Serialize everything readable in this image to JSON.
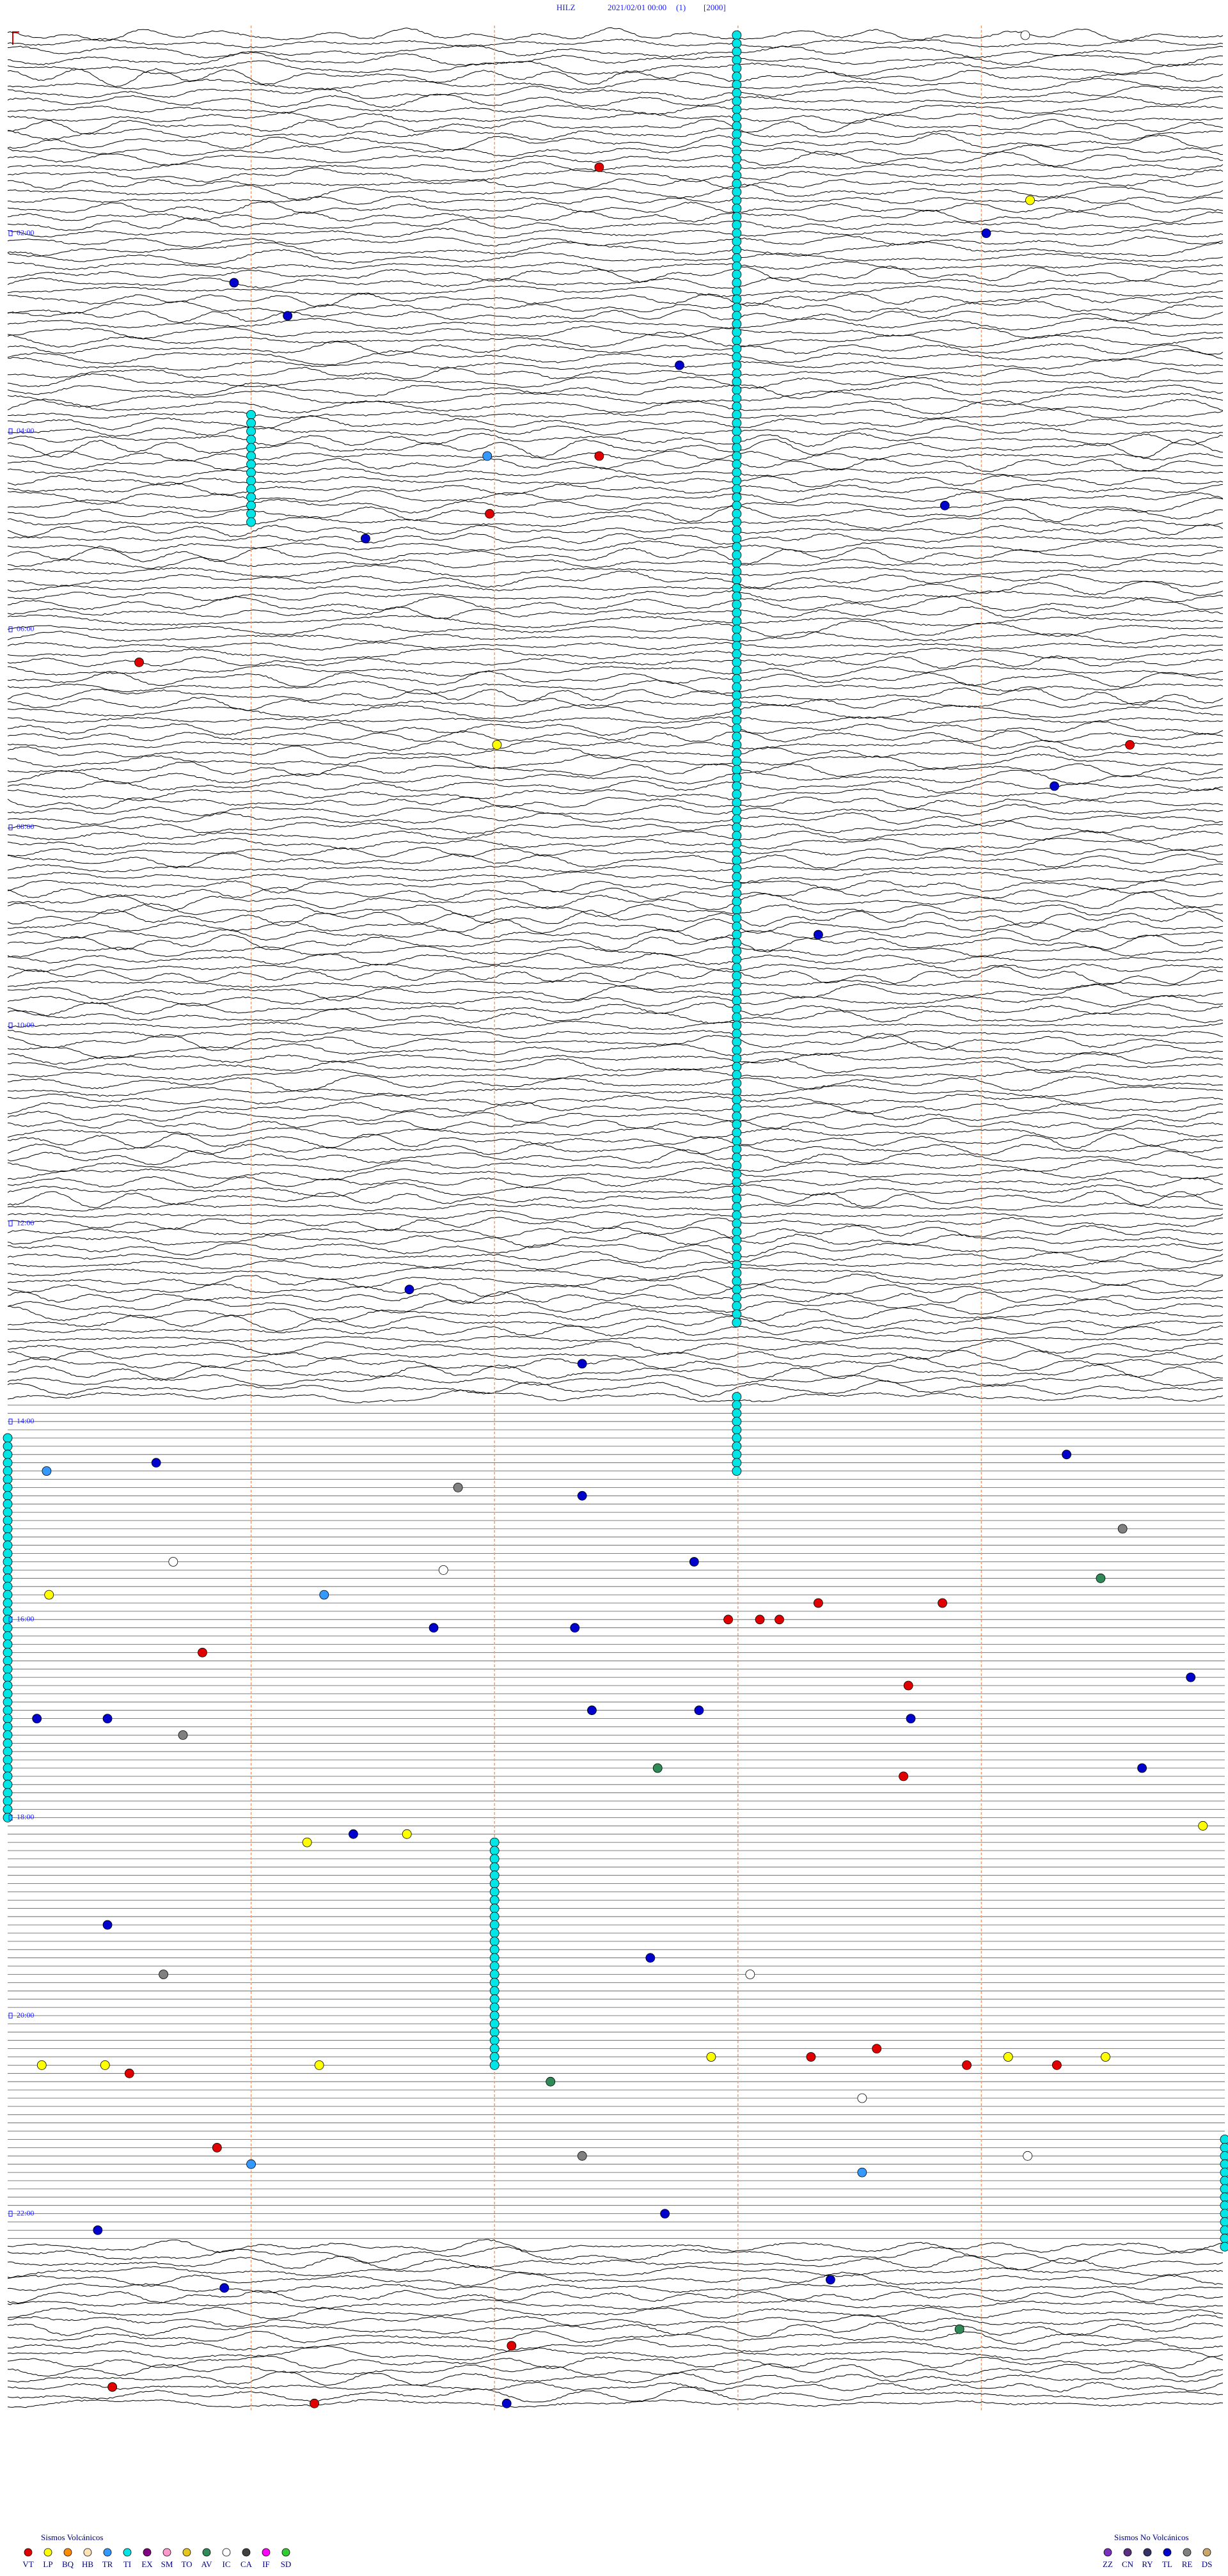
{
  "chart_data": {
    "type": "helicorder",
    "title_parts": [
      "HILZ",
      "2021/02/01 00:00",
      "(1)",
      "[2000]"
    ],
    "xlim": [
      0,
      5
    ],
    "ylim": [
      0,
      24
    ],
    "xticks": [
      1,
      2,
      3,
      4
    ],
    "yticks": [
      {
        "value": 2,
        "label": "02:00"
      },
      {
        "value": 4,
        "label": "04:00"
      },
      {
        "value": 6,
        "label": "06:00"
      },
      {
        "value": 8,
        "label": "08:00"
      },
      {
        "value": 10,
        "label": "10:00"
      },
      {
        "value": 12,
        "label": "12:00"
      },
      {
        "value": 14,
        "label": "14:00"
      },
      {
        "value": 16,
        "label": "16:00"
      },
      {
        "value": 18,
        "label": "18:00"
      },
      {
        "value": 20,
        "label": "20:00"
      },
      {
        "value": 22,
        "label": "22:00"
      }
    ],
    "gap_rows": [
      166,
      267
    ],
    "legends": [
      {
        "title": "Sismos Volcánicos",
        "items": [
          {
            "code": "VT",
            "color": "#e00000"
          },
          {
            "code": "LP",
            "color": "#ffff00"
          },
          {
            "code": "BQ",
            "color": "#ff8c00"
          },
          {
            "code": "HB",
            "color": "#ffe4b5"
          },
          {
            "code": "TR",
            "color": "#3399ff"
          },
          {
            "code": "TI",
            "color": "#00e5e5"
          },
          {
            "code": "EX",
            "color": "#800080"
          },
          {
            "code": "SM",
            "color": "#ff99cc"
          },
          {
            "code": "TO",
            "color": "#e6c619"
          },
          {
            "code": "AV",
            "color": "#2e8b57"
          },
          {
            "code": "IC",
            "color": "#ffffff"
          },
          {
            "code": "CA",
            "color": "#404040"
          },
          {
            "code": "IF",
            "color": "#ff00ff"
          },
          {
            "code": "SD",
            "color": "#33cc33"
          }
        ]
      },
      {
        "title": "Sismos No Volcánicos",
        "items": [
          {
            "code": "ZZ",
            "color": "#7b2fbe"
          },
          {
            "code": "CN",
            "color": "#5a2d82"
          },
          {
            "code": "RY",
            "color": "#333366"
          },
          {
            "code": "TL",
            "color": "#0000cc"
          },
          {
            "code": "RE",
            "color": "#808080"
          },
          {
            "code": "DS",
            "color": "#c9a66b"
          }
        ]
      }
    ],
    "runs": [
      {
        "code": "TI",
        "x": 2.995,
        "from": 0,
        "to": 156
      },
      {
        "code": "TI",
        "x": 1.0,
        "from": 46,
        "to": 59
      },
      {
        "code": "TI",
        "x": 2.995,
        "from": 165,
        "to": 174
      },
      {
        "code": "TI",
        "x": 2.0,
        "from": 219,
        "to": 246
      },
      {
        "code": "TI",
        "x": 0.0,
        "from": 170,
        "to": 216
      },
      {
        "code": "TI",
        "x": 5.0,
        "from": 255,
        "to": 268
      }
    ],
    "events": [
      {
        "code": "IC",
        "row": 0,
        "x": 4.18
      },
      {
        "code": "VT",
        "row": 16,
        "x": 2.43
      },
      {
        "code": "LP",
        "row": 20,
        "x": 4.2
      },
      {
        "code": "TL",
        "row": 24,
        "x": 4.02
      },
      {
        "code": "TL",
        "row": 30,
        "x": 0.93
      },
      {
        "code": "TL",
        "row": 34,
        "x": 1.15
      },
      {
        "code": "TL",
        "row": 40,
        "x": 2.76
      },
      {
        "code": "VT",
        "row": 51,
        "x": 2.43
      },
      {
        "code": "TR",
        "row": 51,
        "x": 1.97
      },
      {
        "code": "TL",
        "row": 57,
        "x": 3.85
      },
      {
        "code": "VT",
        "row": 58,
        "x": 1.98
      },
      {
        "code": "TL",
        "row": 61,
        "x": 1.47
      },
      {
        "code": "VT",
        "row": 76,
        "x": 0.54
      },
      {
        "code": "LP",
        "row": 86,
        "x": 2.01
      },
      {
        "code": "VT",
        "row": 86,
        "x": 4.61
      },
      {
        "code": "TL",
        "row": 91,
        "x": 4.3
      },
      {
        "code": "TL",
        "row": 109,
        "x": 3.33
      },
      {
        "code": "TL",
        "row": 152,
        "x": 1.65
      },
      {
        "code": "TL",
        "row": 161,
        "x": 2.36
      },
      {
        "code": "TL",
        "row": 172,
        "x": 4.35
      },
      {
        "code": "TL",
        "row": 173,
        "x": 0.61
      },
      {
        "code": "TR",
        "row": 174,
        "x": 0.16
      },
      {
        "code": "RE",
        "row": 176,
        "x": 1.85
      },
      {
        "code": "TL",
        "row": 177,
        "x": 2.36
      },
      {
        "code": "RE",
        "row": 181,
        "x": 4.58
      },
      {
        "code": "TL",
        "row": 185,
        "x": 2.82
      },
      {
        "code": "IC",
        "row": 185,
        "x": 0.68
      },
      {
        "code": "IC",
        "row": 186,
        "x": 1.79
      },
      {
        "code": "AV",
        "row": 187,
        "x": 4.49
      },
      {
        "code": "TR",
        "row": 189,
        "x": 1.3
      },
      {
        "code": "LP",
        "row": 189,
        "x": 0.17
      },
      {
        "code": "VT",
        "row": 190,
        "x": 3.33
      },
      {
        "code": "VT",
        "row": 190,
        "x": 3.84
      },
      {
        "code": "VT",
        "row": 192,
        "x": 2.96
      },
      {
        "code": "VT",
        "row": 192,
        "x": 3.09
      },
      {
        "code": "VT",
        "row": 192,
        "x": 3.17
      },
      {
        "code": "TL",
        "row": 193,
        "x": 1.75
      },
      {
        "code": "TL",
        "row": 193,
        "x": 2.33
      },
      {
        "code": "VT",
        "row": 196,
        "x": 0.8
      },
      {
        "code": "TL",
        "row": 199,
        "x": 4.86
      },
      {
        "code": "VT",
        "row": 200,
        "x": 3.7
      },
      {
        "code": "TL",
        "row": 203,
        "x": 2.4
      },
      {
        "code": "TL",
        "row": 203,
        "x": 2.84
      },
      {
        "code": "TL",
        "row": 204,
        "x": 0.12
      },
      {
        "code": "TL",
        "row": 204,
        "x": 0.41
      },
      {
        "code": "TL",
        "row": 204,
        "x": 3.71
      },
      {
        "code": "RE",
        "row": 206,
        "x": 0.72
      },
      {
        "code": "AV",
        "row": 210,
        "x": 2.67
      },
      {
        "code": "TL",
        "row": 210,
        "x": 4.66
      },
      {
        "code": "VT",
        "row": 211,
        "x": 3.68
      },
      {
        "code": "LP",
        "row": 217,
        "x": 4.91
      },
      {
        "code": "TL",
        "row": 218,
        "x": 1.42
      },
      {
        "code": "LP",
        "row": 218,
        "x": 1.64
      },
      {
        "code": "LP",
        "row": 219,
        "x": 1.23
      },
      {
        "code": "TL",
        "row": 229,
        "x": 0.41
      },
      {
        "code": "TL",
        "row": 233,
        "x": 2.64
      },
      {
        "code": "RE",
        "row": 235,
        "x": 0.64
      },
      {
        "code": "IC",
        "row": 235,
        "x": 3.05
      },
      {
        "code": "VT",
        "row": 244,
        "x": 3.57
      },
      {
        "code": "VT",
        "row": 245,
        "x": 3.3
      },
      {
        "code": "LP",
        "row": 245,
        "x": 2.89
      },
      {
        "code": "LP",
        "row": 245,
        "x": 4.11
      },
      {
        "code": "LP",
        "row": 245,
        "x": 4.51
      },
      {
        "code": "VT",
        "row": 246,
        "x": 3.94
      },
      {
        "code": "VT",
        "row": 246,
        "x": 4.31
      },
      {
        "code": "LP",
        "row": 246,
        "x": 0.14
      },
      {
        "code": "LP",
        "row": 246,
        "x": 0.4
      },
      {
        "code": "LP",
        "row": 246,
        "x": 1.28
      },
      {
        "code": "VT",
        "row": 247,
        "x": 0.5
      },
      {
        "code": "AV",
        "row": 248,
        "x": 2.23
      },
      {
        "code": "IC",
        "row": 250,
        "x": 3.51
      },
      {
        "code": "VT",
        "row": 256,
        "x": 0.86
      },
      {
        "code": "RE",
        "row": 257,
        "x": 2.36
      },
      {
        "code": "TR",
        "row": 258,
        "x": 1.0
      },
      {
        "code": "TR",
        "row": 259,
        "x": 3.51
      },
      {
        "code": "IC",
        "row": 257,
        "x": 4.19
      },
      {
        "code": "TL",
        "row": 264,
        "x": 2.7
      },
      {
        "code": "TL",
        "row": 266,
        "x": 0.37
      },
      {
        "code": "TL",
        "row": 272,
        "x": 3.38
      },
      {
        "code": "TL",
        "row": 273,
        "x": 0.89
      },
      {
        "code": "AV",
        "row": 278,
        "x": 3.91
      },
      {
        "code": "VT",
        "row": 280,
        "x": 2.07
      },
      {
        "code": "VT",
        "row": 285,
        "x": 0.43
      },
      {
        "code": "VT",
        "row": 287,
        "x": 1.26
      },
      {
        "code": "TL",
        "row": 287,
        "x": 2.05
      }
    ]
  }
}
